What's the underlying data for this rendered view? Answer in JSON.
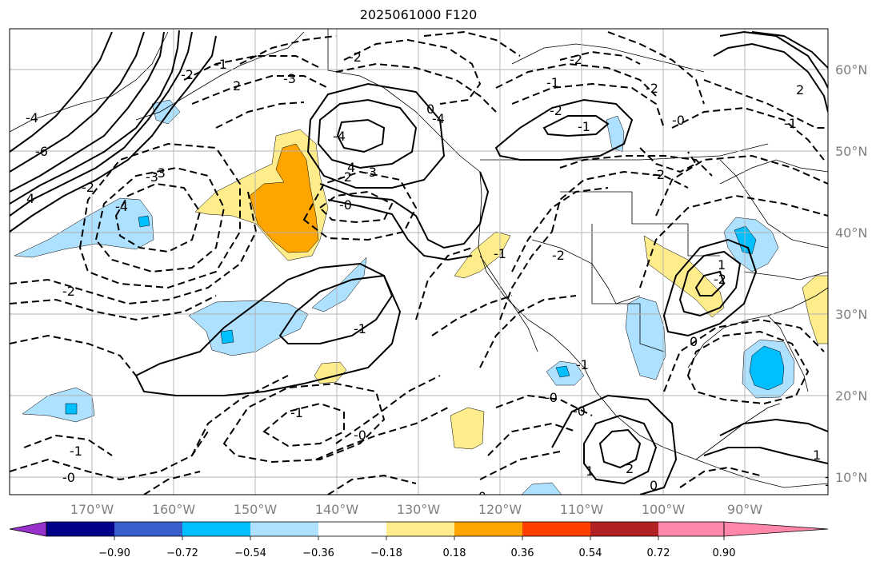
{
  "title": "2025061000 F120",
  "map": {
    "lat_labels": [
      "60°N",
      "50°N",
      "40°N",
      "30°N",
      "20°N",
      "10°N"
    ],
    "lon_labels": [
      "170°W",
      "160°W",
      "150°W",
      "140°W",
      "130°W",
      "120°W",
      "110°W",
      "100°W",
      "90°W"
    ],
    "contour_labels": [
      "-2",
      "-3",
      "-1",
      "-2",
      "2",
      "-1",
      "-4",
      "-2",
      "-4",
      "-3",
      "0",
      "1",
      "-2",
      "-1",
      "-0",
      "4",
      "-6",
      "-4",
      "-2",
      "-3",
      "-2",
      "-3",
      "-4",
      "-1",
      "4",
      "-2",
      "-0",
      "-2",
      "-1",
      "-0",
      "-1",
      "-1",
      "-0",
      "-2",
      "-0",
      "0",
      "1",
      "-2",
      "-2",
      "2",
      "-1",
      "-0",
      "0",
      "-1",
      "1",
      "2",
      "-0",
      "1"
    ],
    "colors": {
      "light_blue": "#aee0ff",
      "blue": "#00bfff",
      "yellow": "#ffec8b",
      "orange": "#ffa500"
    }
  },
  "colorbar": {
    "ticks": [
      "−0.90",
      "−0.72",
      "−0.54",
      "−0.36",
      "−0.18",
      "0.18",
      "0.36",
      "0.54",
      "0.72",
      "0.90"
    ],
    "colors": [
      "#9932cc",
      "#00008b",
      "#3a5fcd",
      "#00bfff",
      "#aee0ff",
      "#ffffff",
      "#ffec8b",
      "#ffa500",
      "#ff3f00",
      "#b22222",
      "#ff88aa"
    ]
  }
}
